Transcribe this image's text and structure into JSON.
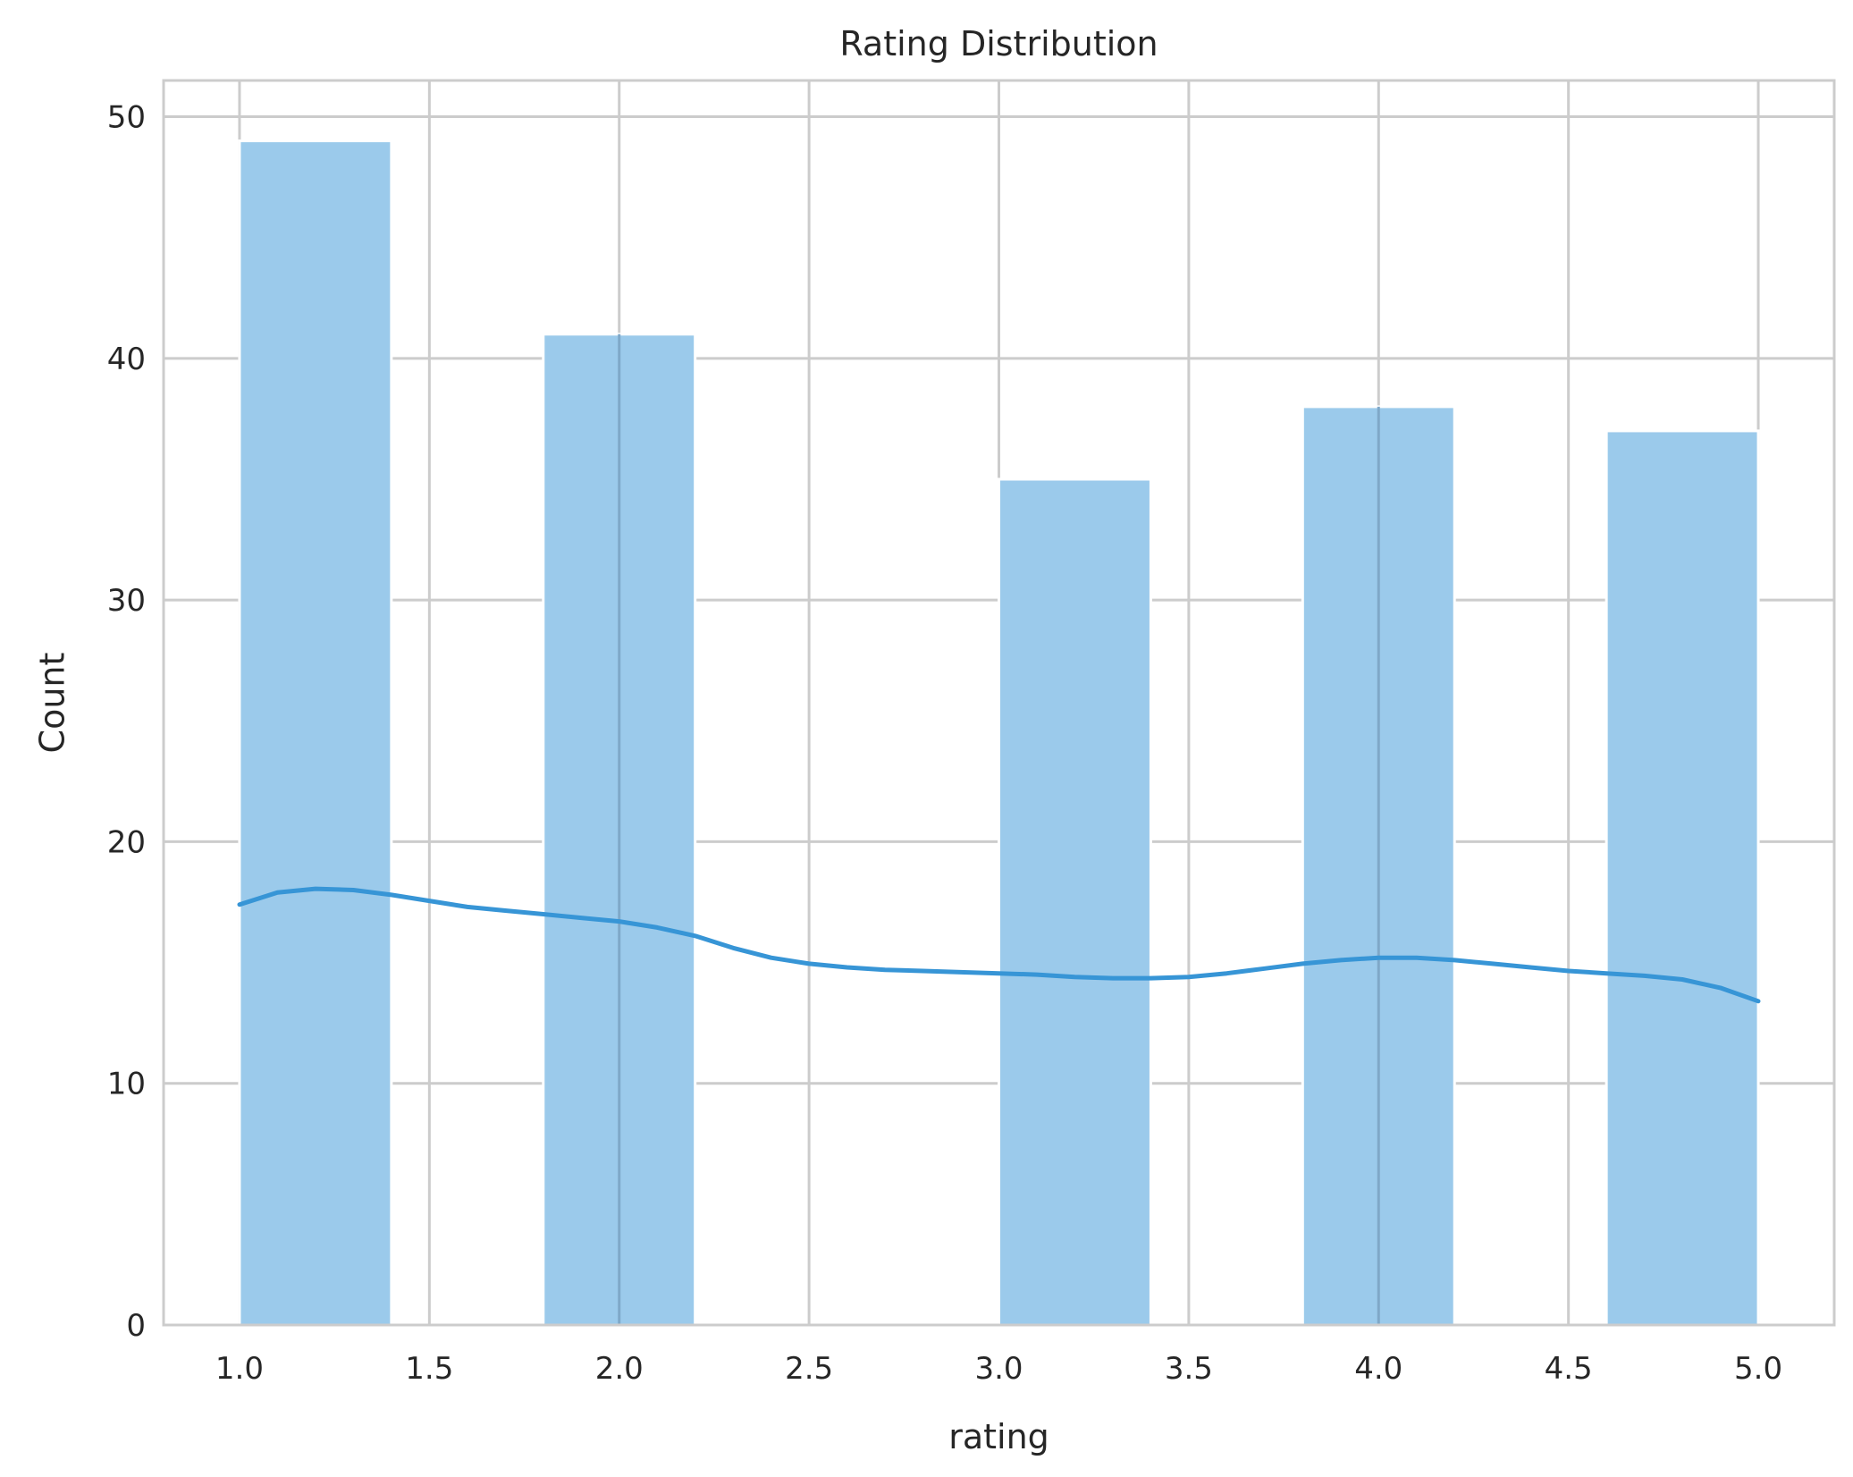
{
  "chart_data": {
    "type": "bar",
    "title": "Rating Distribution",
    "xlabel": "rating",
    "ylabel": "Count",
    "xlim": [
      0.8,
      5.2
    ],
    "ylim": [
      0,
      51.5
    ],
    "xticks": [
      1.0,
      1.5,
      2.0,
      2.5,
      3.0,
      3.5,
      4.0,
      4.5,
      5.0
    ],
    "xtick_labels": [
      "1.0",
      "1.5",
      "2.0",
      "2.5",
      "3.0",
      "3.5",
      "4.0",
      "4.5",
      "5.0"
    ],
    "yticks": [
      0,
      10,
      20,
      30,
      40,
      50
    ],
    "ytick_labels": [
      "0",
      "10",
      "20",
      "30",
      "40",
      "50"
    ],
    "grid": true,
    "bins": [
      {
        "x0": 1.0,
        "x1": 1.4,
        "count": 49
      },
      {
        "x0": 1.8,
        "x1": 2.2,
        "count": 41
      },
      {
        "x0": 3.0,
        "x1": 3.4,
        "count": 35
      },
      {
        "x0": 3.8,
        "x1": 4.2,
        "count": 38
      },
      {
        "x0": 4.6,
        "x1": 5.0,
        "count": 37
      }
    ],
    "kde": {
      "x": [
        1.0,
        1.1,
        1.2,
        1.3,
        1.4,
        1.5,
        1.6,
        1.7,
        1.8,
        1.9,
        2.0,
        2.1,
        2.2,
        2.3,
        2.4,
        2.5,
        2.6,
        2.7,
        2.8,
        2.9,
        3.0,
        3.1,
        3.2,
        3.3,
        3.4,
        3.5,
        3.6,
        3.7,
        3.8,
        3.9,
        4.0,
        4.1,
        4.2,
        4.3,
        4.4,
        4.5,
        4.6,
        4.7,
        4.8,
        4.9,
        5.0
      ],
      "y": [
        17.4,
        17.9,
        18.05,
        18.0,
        17.8,
        17.55,
        17.3,
        17.15,
        17.0,
        16.85,
        16.7,
        16.45,
        16.1,
        15.6,
        15.2,
        14.95,
        14.8,
        14.7,
        14.65,
        14.6,
        14.55,
        14.5,
        14.4,
        14.35,
        14.35,
        14.4,
        14.55,
        14.75,
        14.95,
        15.1,
        15.2,
        15.2,
        15.1,
        14.95,
        14.8,
        14.65,
        14.55,
        14.45,
        14.3,
        13.95,
        13.4
      ]
    },
    "colors": {
      "bar": "#9bcaeb",
      "kde": "#3795d6",
      "grid": "#cccccc",
      "frame": "#cccccc",
      "text": "#262626"
    }
  }
}
